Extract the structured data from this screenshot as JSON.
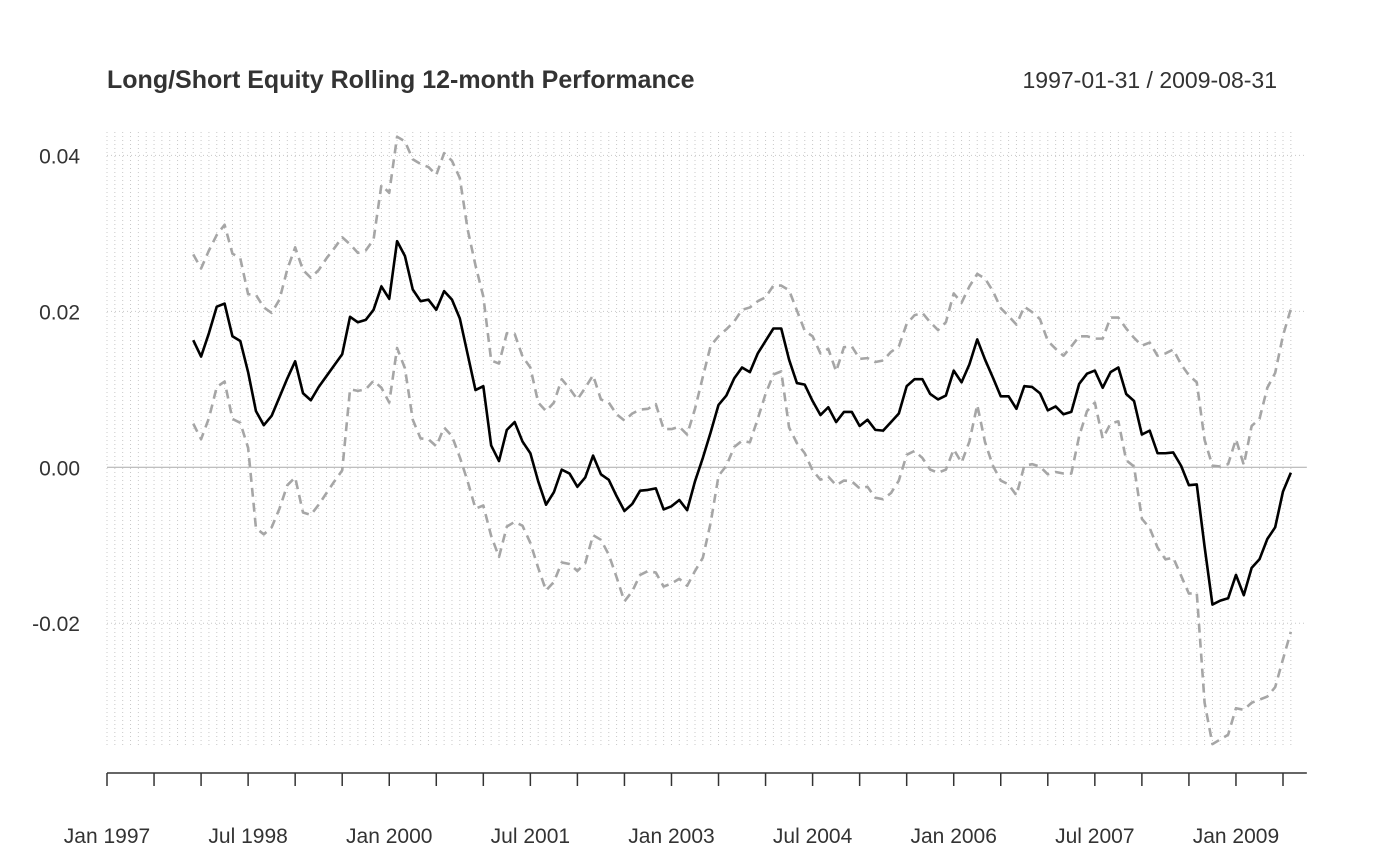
{
  "chart_data": {
    "type": "line",
    "title": "Long/Short Equity Rolling 12-month Performance",
    "date_range": "1997-01-31 / 2009-08-31",
    "xlabel": "",
    "ylabel": "",
    "x_start": "1997-01",
    "x_end": "2009-08",
    "ylim": [
      -0.036,
      0.043
    ],
    "y_ticks": [
      0.04,
      0.02,
      0.0,
      -0.02
    ],
    "y_tick_labels": [
      "0.04",
      "0.02",
      "0.00",
      "-0.02"
    ],
    "x_tick_labels": [
      "Jan 1997",
      "Jul 1998",
      "Jan 2000",
      "Jul 2001",
      "Jan 2003",
      "Jul 2004",
      "Jan 2006",
      "Jul 2007",
      "Jan 2009"
    ],
    "x_tick_dates": [
      "1997-01",
      "1998-07",
      "2000-01",
      "2001-07",
      "2003-01",
      "2004-07",
      "2006-01",
      "2007-07",
      "2009-01"
    ],
    "grid": true,
    "colors": {
      "main": "#000000",
      "band": "#a6a6a6",
      "zero": "#aaaaaa",
      "grid": "#c8c8c8"
    },
    "series": [
      {
        "role": "mean",
        "start": "1997-12",
        "values": [
          0.0163,
          0.0142,
          0.0172,
          0.0206,
          0.021,
          0.0168,
          0.0162,
          0.0122,
          0.0072,
          0.0054,
          0.0066,
          0.009,
          0.0114,
          0.0136,
          0.0095,
          0.0086,
          0.0103,
          0.0117,
          0.0131,
          0.0145,
          0.0193,
          0.0186,
          0.0189,
          0.0202,
          0.0232,
          0.0216,
          0.029,
          0.0271,
          0.0228,
          0.0213,
          0.0215,
          0.0202,
          0.0226,
          0.0215,
          0.0191,
          0.0145,
          0.0099,
          0.0104,
          0.0028,
          0.0008,
          0.0048,
          0.0058,
          0.0033,
          0.0018,
          -0.0018,
          -0.0048,
          -0.0032,
          -0.0003,
          -0.0008,
          -0.0025,
          -0.0013,
          0.0015,
          -0.0009,
          -0.0016,
          -0.0037,
          -0.0056,
          -0.0047,
          -0.003,
          -0.0029,
          -0.0027,
          -0.0054,
          -0.005,
          -0.0042,
          -0.0055,
          -0.0018,
          0.0012,
          0.0045,
          0.008,
          0.0092,
          0.0114,
          0.0128,
          0.0122,
          0.0146,
          0.0162,
          0.0178,
          0.0178,
          0.0138,
          0.0108,
          0.0106,
          0.0085,
          0.0067,
          0.0077,
          0.0058,
          0.0071,
          0.0071,
          0.0053,
          0.0061,
          0.0048,
          0.0047,
          0.0058,
          0.0069,
          0.0104,
          0.0113,
          0.0113,
          0.0094,
          0.0087,
          0.0092,
          0.0124,
          0.0109,
          0.0132,
          0.0164,
          0.0138,
          0.0115,
          0.0091,
          0.0091,
          0.0075,
          0.0104,
          0.0103,
          0.0095,
          0.0073,
          0.0078,
          0.0068,
          0.0071,
          0.0107,
          0.012,
          0.0124,
          0.0102,
          0.0122,
          0.0128,
          0.0094,
          0.0085,
          0.0042,
          0.0047,
          0.0018,
          0.0018,
          0.0019,
          0.0002,
          -0.0023,
          -0.0022,
          -0.0102,
          -0.0176,
          -0.0171,
          -0.0168,
          -0.0138,
          -0.0164,
          -0.0129,
          -0.0118,
          -0.0092,
          -0.0077,
          -0.0031,
          -0.0007
        ]
      },
      {
        "role": "upper",
        "start": "1997-12",
        "values": [
          0.0273,
          0.0255,
          0.0278,
          0.0298,
          0.0311,
          0.0274,
          0.0268,
          0.0222,
          0.0221,
          0.0205,
          0.0198,
          0.0215,
          0.0254,
          0.0282,
          0.0253,
          0.0243,
          0.0253,
          0.0268,
          0.0281,
          0.0295,
          0.0286,
          0.0275,
          0.0278,
          0.0292,
          0.0362,
          0.0352,
          0.0424,
          0.0418,
          0.0395,
          0.0389,
          0.0385,
          0.0375,
          0.0403,
          0.0393,
          0.0371,
          0.0305,
          0.0259,
          0.0219,
          0.0137,
          0.0133,
          0.0172,
          0.0171,
          0.0142,
          0.0128,
          0.0083,
          0.0072,
          0.0083,
          0.0113,
          0.0101,
          0.0087,
          0.0102,
          0.0118,
          0.0087,
          0.0083,
          0.0068,
          0.006,
          0.0069,
          0.0074,
          0.0075,
          0.0081,
          0.0049,
          0.0049,
          0.0052,
          0.0042,
          0.0075,
          0.0116,
          0.0156,
          0.0168,
          0.0177,
          0.0187,
          0.0202,
          0.0205,
          0.0213,
          0.0218,
          0.0233,
          0.0233,
          0.0227,
          0.0201,
          0.0175,
          0.0168,
          0.0146,
          0.0152,
          0.0123,
          0.0154,
          0.0155,
          0.0139,
          0.014,
          0.0135,
          0.0137,
          0.0148,
          0.0155,
          0.0184,
          0.0195,
          0.0198,
          0.0186,
          0.0176,
          0.0186,
          0.0223,
          0.0211,
          0.0232,
          0.0248,
          0.0242,
          0.0226,
          0.0204,
          0.0194,
          0.0183,
          0.0206,
          0.0199,
          0.019,
          0.0162,
          0.0152,
          0.0143,
          0.0155,
          0.0168,
          0.0168,
          0.0165,
          0.0165,
          0.0192,
          0.0192,
          0.0178,
          0.0166,
          0.0156,
          0.016,
          0.0143,
          0.0146,
          0.0151,
          0.0132,
          0.0118,
          0.0109,
          0.0035,
          0.0002,
          0.0001,
          0.0004,
          0.0036,
          0.0003,
          0.0053,
          0.0062,
          0.0102,
          0.0121,
          0.0169,
          0.0203
        ]
      },
      {
        "role": "lower",
        "start": "1997-12",
        "values": [
          0.0056,
          0.0036,
          0.0063,
          0.0103,
          0.011,
          0.0062,
          0.0057,
          0.0025,
          -0.0078,
          -0.0086,
          -0.0077,
          -0.0053,
          -0.0023,
          -0.0013,
          -0.0058,
          -0.0061,
          -0.0048,
          -0.0033,
          -0.0018,
          -0.0004,
          0.01,
          0.0098,
          0.01,
          0.0111,
          0.0102,
          0.0083,
          0.0153,
          0.0127,
          0.0061,
          0.0037,
          0.0036,
          0.0027,
          0.0051,
          0.004,
          0.0013,
          -0.0018,
          -0.0053,
          -0.0049,
          -0.0088,
          -0.0115,
          -0.0076,
          -0.007,
          -0.0075,
          -0.0097,
          -0.0129,
          -0.0158,
          -0.0147,
          -0.0122,
          -0.0124,
          -0.0133,
          -0.0123,
          -0.0087,
          -0.0093,
          -0.0112,
          -0.0141,
          -0.0172,
          -0.0159,
          -0.0138,
          -0.0133,
          -0.0135,
          -0.0153,
          -0.0149,
          -0.0143,
          -0.0152,
          -0.0133,
          -0.0116,
          -0.0071,
          -0.0011,
          0.0002,
          0.0026,
          0.0034,
          0.0032,
          0.0062,
          0.0094,
          0.0119,
          0.0123,
          0.0051,
          0.0031,
          0.0018,
          -0.0004,
          -0.0016,
          -0.0012,
          -0.0023,
          -0.0017,
          -0.0018,
          -0.0027,
          -0.0025,
          -0.0039,
          -0.0041,
          -0.0033,
          -0.0017,
          0.0016,
          0.0021,
          0.0012,
          -0.0003,
          -0.0007,
          -0.0003,
          0.0023,
          0.0006,
          0.0033,
          0.008,
          0.0032,
          0.0002,
          -0.0017,
          -0.0022,
          -0.0036,
          0.0002,
          0.0004,
          0.0001,
          -0.0009,
          -0.0006,
          -0.0008,
          -0.0008,
          0.004,
          0.0072,
          0.0083,
          0.0037,
          0.0056,
          0.0059,
          0.0009,
          0.0001,
          -0.0066,
          -0.0078,
          -0.0103,
          -0.0118,
          -0.0116,
          -0.0139,
          -0.0162,
          -0.0161,
          -0.0302,
          -0.0355,
          -0.0349,
          -0.0343,
          -0.0309,
          -0.0311,
          -0.0302,
          -0.0298,
          -0.0294,
          -0.0282,
          -0.0246,
          -0.0211
        ]
      }
    ]
  }
}
